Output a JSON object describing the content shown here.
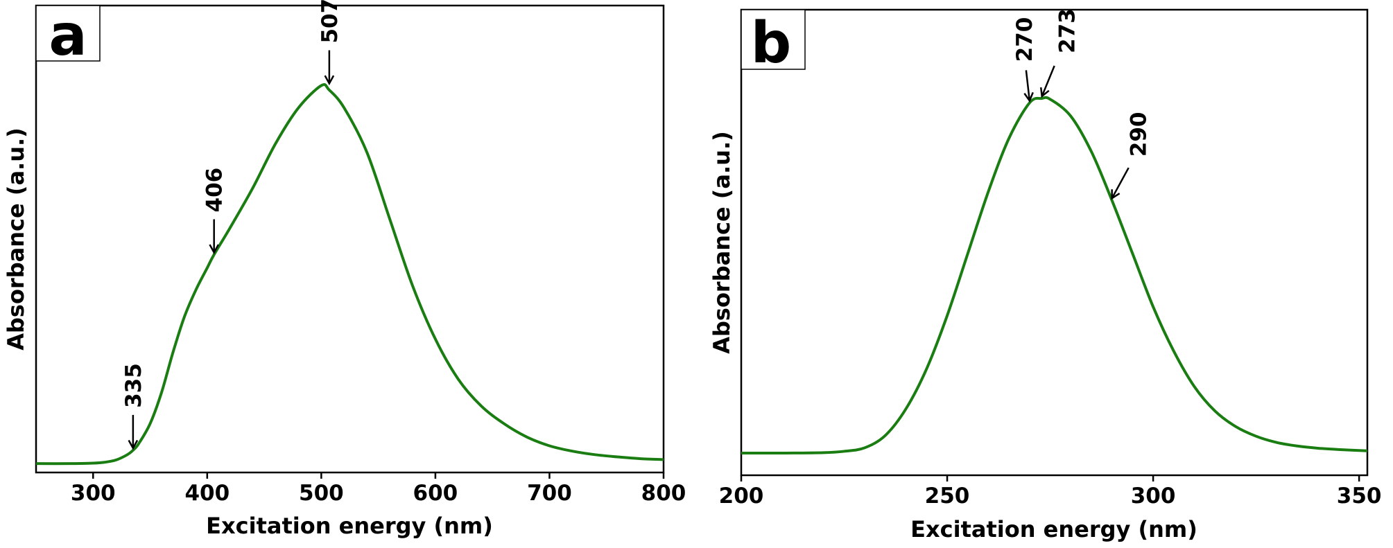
{
  "chart_data": [
    {
      "panel_label": "a",
      "type": "line",
      "xlabel": "Excitation energy (nm)",
      "ylabel": "Absorbance (a.u.)",
      "xlim": [
        250,
        800
      ],
      "ylim": [
        0,
        1.05
      ],
      "xticks": [
        300,
        400,
        500,
        600,
        700,
        800
      ],
      "yticks_shown": false,
      "grid": false,
      "series": [
        {
          "color": "#1a7d12",
          "x": [
            250,
            280,
            300,
            310,
            320,
            330,
            335,
            340,
            350,
            360,
            370,
            380,
            390,
            400,
            406,
            420,
            440,
            460,
            480,
            500,
            507,
            520,
            540,
            560,
            580,
            600,
            620,
            640,
            660,
            680,
            700,
            720,
            740,
            760,
            780,
            800
          ],
          "y": [
            0.02,
            0.02,
            0.021,
            0.023,
            0.028,
            0.04,
            0.05,
            0.065,
            0.11,
            0.18,
            0.27,
            0.35,
            0.41,
            0.46,
            0.49,
            0.55,
            0.64,
            0.74,
            0.82,
            0.87,
            0.86,
            0.82,
            0.72,
            0.57,
            0.42,
            0.3,
            0.21,
            0.15,
            0.11,
            0.08,
            0.06,
            0.048,
            0.04,
            0.035,
            0.031,
            0.029
          ]
        }
      ],
      "annotations": [
        {
          "text": "335",
          "x": 335,
          "y": 0.05
        },
        {
          "text": "406",
          "x": 406,
          "y": 0.49
        },
        {
          "text": "507",
          "x": 507,
          "y": 0.87
        }
      ]
    },
    {
      "panel_label": "b",
      "type": "line",
      "xlabel": "Excitation energy (nm)",
      "ylabel": "Absorbance (a.u.)",
      "xlim": [
        200,
        352
      ],
      "ylim": [
        0,
        1.05
      ],
      "xticks": [
        200,
        250,
        300,
        350
      ],
      "yticks_shown": false,
      "grid": false,
      "series": [
        {
          "color": "#1a7d12",
          "x": [
            200,
            210,
            220,
            225,
            230,
            235,
            240,
            245,
            250,
            255,
            260,
            265,
            270,
            273,
            275,
            280,
            285,
            290,
            295,
            300,
            305,
            310,
            315,
            320,
            325,
            330,
            335,
            340,
            345,
            352
          ],
          "y": [
            0.05,
            0.05,
            0.051,
            0.054,
            0.062,
            0.09,
            0.15,
            0.24,
            0.36,
            0.5,
            0.64,
            0.76,
            0.84,
            0.85,
            0.848,
            0.81,
            0.73,
            0.62,
            0.5,
            0.38,
            0.28,
            0.2,
            0.145,
            0.11,
            0.088,
            0.074,
            0.066,
            0.061,
            0.058,
            0.055
          ]
        }
      ],
      "annotations": [
        {
          "text": "270",
          "x": 270,
          "y": 0.84
        },
        {
          "text": "273",
          "x": 273,
          "y": 0.85
        },
        {
          "text": "290",
          "x": 290,
          "y": 0.62
        }
      ]
    }
  ]
}
